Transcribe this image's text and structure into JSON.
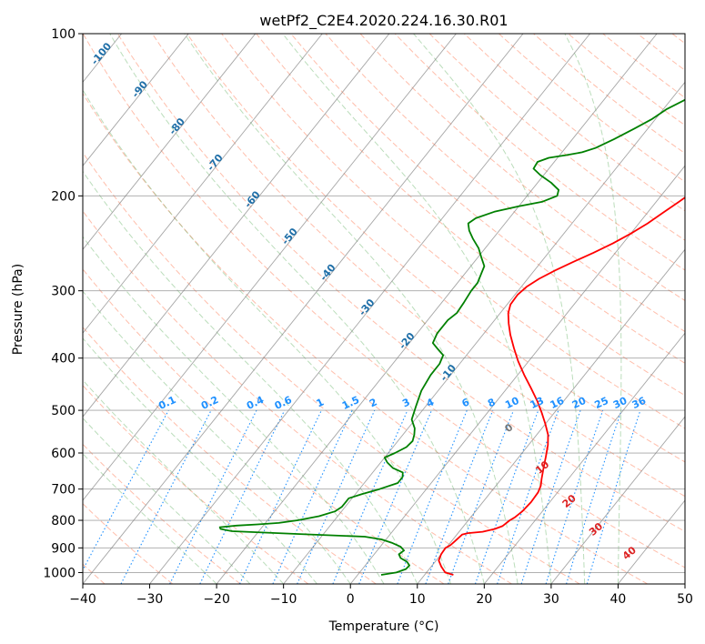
{
  "chart_data": {
    "type": "line",
    "chart_kind": "skew-T log-P diagram",
    "title": "wetPf2_C2E4.2020.224.16.30.R01",
    "xlabel": "Temperature (°C)",
    "ylabel": "Pressure (hPa)",
    "xlim": [
      -40,
      50
    ],
    "ylim": [
      1050,
      100
    ],
    "y_scale": "log",
    "grid": true,
    "x_ticks": [
      -40,
      -30,
      -20,
      -10,
      0,
      10,
      20,
      30,
      40,
      50
    ],
    "x_tick_labels": [
      "−40",
      "−30",
      "−20",
      "−10",
      "0",
      "10",
      "20",
      "30",
      "40",
      "50"
    ],
    "y_ticks": [
      1000,
      900,
      800,
      700,
      600,
      500,
      400,
      300,
      200,
      100
    ],
    "y_tick_labels": [
      "1000",
      "900",
      "800",
      "700",
      "600",
      "500",
      "400",
      "300",
      "200",
      "100"
    ],
    "colors": {
      "temperature": "#ff0000",
      "dewpoint": "#008000",
      "dry_adiabat": "#ff8866",
      "moist_adiabat": "#55aa55",
      "mixing_ratio": "#1e90ff",
      "isotherm": "#808080",
      "saturation_label": "#1f6fa8",
      "mixing_label_high": "#dd2222"
    },
    "series": [
      {
        "role": "temperature",
        "points": [
          [
            14.3,
            1010
          ],
          [
            12.8,
            1000
          ],
          [
            11.5,
            975
          ],
          [
            10.4,
            950
          ],
          [
            10.0,
            925
          ],
          [
            9.9,
            900
          ],
          [
            10.3,
            890
          ],
          [
            10.5,
            875
          ],
          [
            10.8,
            850
          ],
          [
            11.5,
            845
          ],
          [
            13.5,
            840
          ],
          [
            15.0,
            830
          ],
          [
            15.8,
            820
          ],
          [
            16.2,
            800
          ],
          [
            16.6,
            790
          ],
          [
            17.0,
            770
          ],
          [
            17.2,
            740
          ],
          [
            17.1,
            710
          ],
          [
            16.7,
            690
          ],
          [
            16.0,
            670
          ],
          [
            15.0,
            640
          ],
          [
            14.0,
            610
          ],
          [
            12.9,
            580
          ],
          [
            11.7,
            555
          ],
          [
            10.0,
            530
          ],
          [
            8.1,
            505
          ],
          [
            6.0,
            480
          ],
          [
            3.6,
            455
          ],
          [
            1.0,
            430
          ],
          [
            -1.6,
            405
          ],
          [
            -3.8,
            383
          ],
          [
            -5.9,
            362
          ],
          [
            -7.5,
            345
          ],
          [
            -8.8,
            330
          ],
          [
            -9.5,
            318
          ],
          [
            -9.6,
            305
          ],
          [
            -9.2,
            295
          ],
          [
            -8.3,
            285
          ],
          [
            -6.9,
            275
          ],
          [
            -5.2,
            265
          ],
          [
            -3.3,
            255
          ],
          [
            -1.5,
            245
          ],
          [
            0.0,
            235
          ],
          [
            1.3,
            225
          ],
          [
            2.3,
            215
          ],
          [
            3.4,
            205
          ],
          [
            4.5,
            195
          ],
          [
            5.7,
            185
          ],
          [
            6.6,
            175
          ],
          [
            7.0,
            165
          ],
          [
            7.0,
            155
          ],
          [
            7.2,
            150
          ],
          [
            7.6,
            145
          ],
          [
            8.0,
            140
          ],
          [
            8.3,
            134
          ],
          [
            8.6,
            130
          ],
          [
            9.0,
            125
          ],
          [
            9.6,
            120
          ],
          [
            10.6,
            115
          ],
          [
            11.9,
            110
          ],
          [
            13.2,
            106
          ],
          [
            14.4,
            102.5
          ],
          [
            15.0,
            100.5
          ]
        ]
      },
      {
        "role": "dewpoint",
        "points": [
          [
            3.5,
            1010
          ],
          [
            5.5,
            1000
          ],
          [
            6.5,
            985
          ],
          [
            6.6,
            970
          ],
          [
            5.8,
            955
          ],
          [
            4.4,
            940
          ],
          [
            3.7,
            925
          ],
          [
            4.0,
            910
          ],
          [
            3.0,
            895
          ],
          [
            1.2,
            880
          ],
          [
            -0.7,
            868
          ],
          [
            -3.5,
            858
          ],
          [
            -14.0,
            848
          ],
          [
            -24.0,
            838
          ],
          [
            -26.0,
            830
          ],
          [
            -26.3,
            824
          ],
          [
            -24.0,
            818
          ],
          [
            -21.0,
            814
          ],
          [
            -18.0,
            809
          ],
          [
            -15.5,
            800
          ],
          [
            -12.8,
            786
          ],
          [
            -11.0,
            770
          ],
          [
            -10.5,
            755
          ],
          [
            -10.5,
            742
          ],
          [
            -10.5,
            728
          ],
          [
            -9.0,
            715
          ],
          [
            -7.0,
            700
          ],
          [
            -5.0,
            682
          ],
          [
            -5.0,
            665
          ],
          [
            -5.5,
            652
          ],
          [
            -7.5,
            640
          ],
          [
            -9.0,
            625
          ],
          [
            -10.0,
            612
          ],
          [
            -9.0,
            600
          ],
          [
            -8.0,
            585
          ],
          [
            -7.8,
            570
          ],
          [
            -8.3,
            555
          ],
          [
            -9.0,
            540
          ],
          [
            -10.5,
            520
          ],
          [
            -11.5,
            490
          ],
          [
            -12.5,
            460
          ],
          [
            -13.0,
            430
          ],
          [
            -13.0,
            410
          ],
          [
            -13.5,
            395
          ],
          [
            -15.0,
            385
          ],
          [
            -16.5,
            375
          ],
          [
            -17.0,
            360
          ],
          [
            -17.0,
            340
          ],
          [
            -16.5,
            330
          ],
          [
            -16.7,
            315
          ],
          [
            -17.0,
            300
          ],
          [
            -17.0,
            290
          ],
          [
            -17.5,
            280
          ],
          [
            -18.0,
            270
          ],
          [
            -19.5,
            260
          ],
          [
            -21.0,
            250
          ],
          [
            -23.0,
            240
          ],
          [
            -24.5,
            232
          ],
          [
            -25.5,
            225
          ],
          [
            -25.0,
            220
          ],
          [
            -23.0,
            214
          ],
          [
            -20.0,
            209
          ],
          [
            -17.0,
            205
          ],
          [
            -15.5,
            200
          ],
          [
            -16.0,
            195
          ],
          [
            -18.0,
            189
          ],
          [
            -20.5,
            183
          ],
          [
            -22.3,
            178
          ],
          [
            -22.5,
            173
          ],
          [
            -21.3,
            170
          ],
          [
            -19.0,
            168
          ],
          [
            -17.0,
            166
          ],
          [
            -15.5,
            163
          ],
          [
            -13.8,
            157
          ],
          [
            -12.0,
            150
          ],
          [
            -10.5,
            144
          ],
          [
            -9.5,
            138
          ],
          [
            -8.0,
            133
          ],
          [
            -6.8,
            128
          ],
          [
            -5.5,
            124
          ],
          [
            -4.2,
            120
          ],
          [
            -3.0,
            116
          ],
          [
            -1.5,
            112
          ],
          [
            -0.2,
            108
          ],
          [
            0.8,
            104
          ],
          [
            1.2,
            101
          ],
          [
            1.3,
            100
          ]
        ]
      }
    ],
    "saturation_labels": [
      "-100",
      "-90",
      "-80",
      "-70",
      "-60",
      "-50",
      "-40",
      "-30",
      "-20",
      "-10"
    ],
    "mixing_ratio_labels": [
      "0.1",
      "0.2",
      "0.4",
      "0.6",
      "1",
      "1.5",
      "2",
      "3",
      "4",
      "6",
      "8",
      "10",
      "13",
      "16",
      "20",
      "25",
      "30",
      "36"
    ],
    "red_labels": [
      "0",
      "10",
      "20",
      "30",
      "40"
    ]
  }
}
